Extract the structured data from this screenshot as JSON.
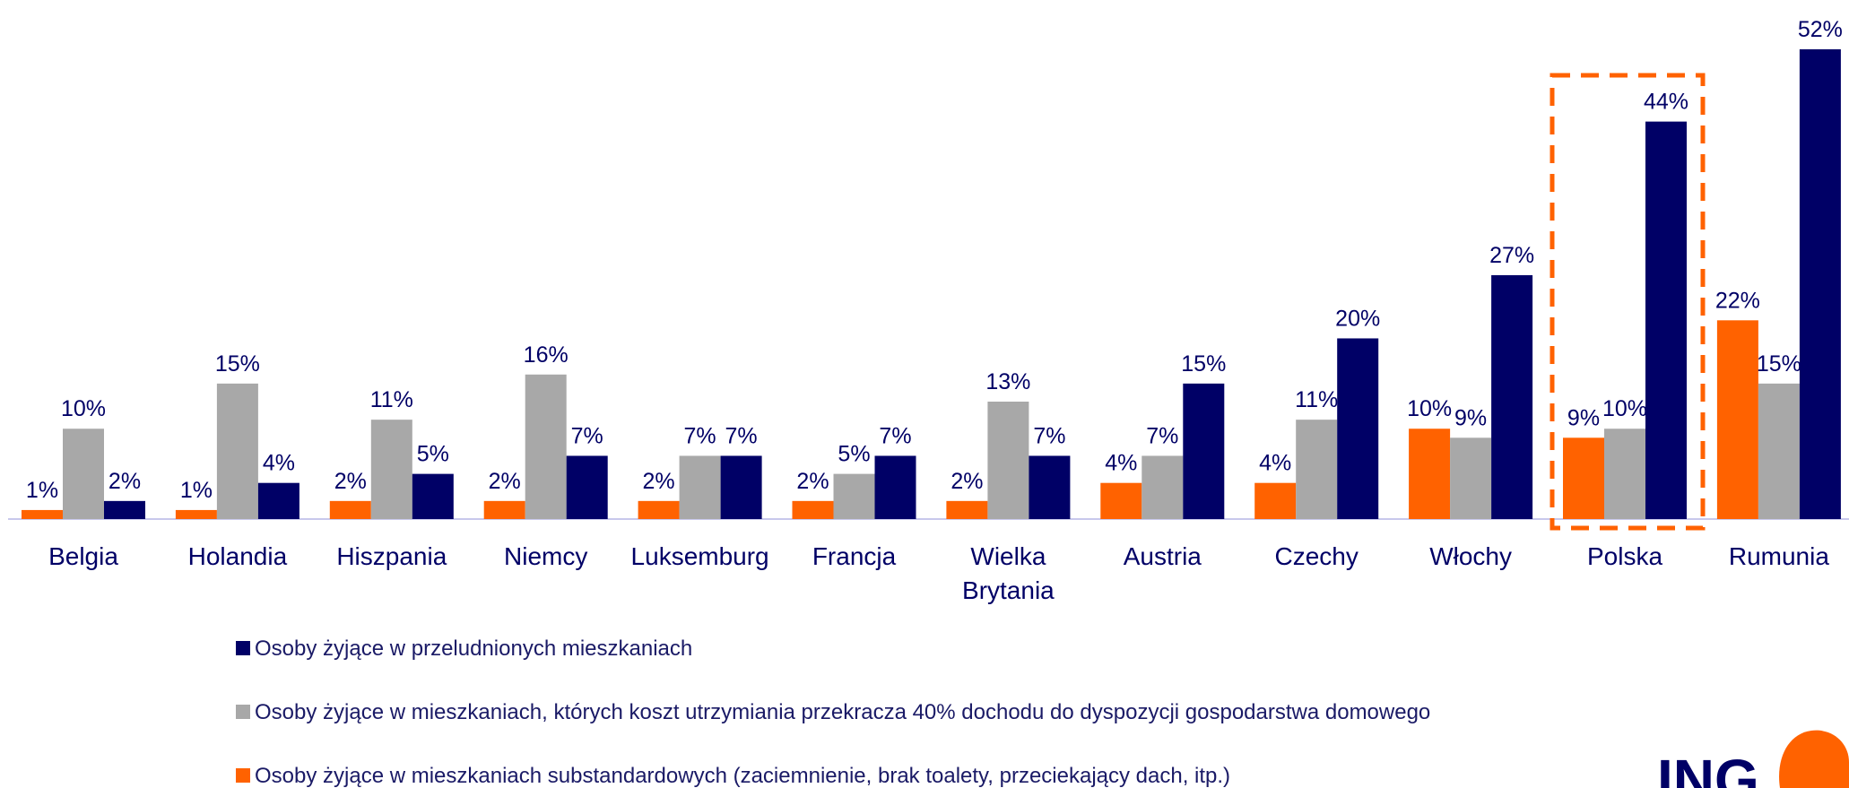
{
  "chart_data": {
    "type": "bar",
    "categories": [
      "Belgia",
      "Holandia",
      "Hiszpania",
      "Niemcy",
      "Luksemburg",
      "Francja",
      "Wielka Brytania",
      "Austria",
      "Czechy",
      "Włochy",
      "Polska",
      "Rumunia"
    ],
    "series": [
      {
        "name": "Osoby żyjące w mieszkaniach substandardowych (zaciemnienie, brak toalety, przeciekający dach, itp.)",
        "color": "#ff6200",
        "values": [
          1,
          1,
          2,
          2,
          2,
          2,
          2,
          4,
          4,
          10,
          9,
          22
        ],
        "value_labels": [
          "1%",
          "1%",
          "2%",
          "2%",
          "2%",
          "2%",
          "2%",
          "4%",
          "4%",
          "10%",
          "9%",
          "22%"
        ]
      },
      {
        "name": "Osoby żyjące w mieszkaniach, których koszt utrzymiania przekracza 40% dochodu do dyspozycji gospodarstwa domowego",
        "color": "#a8a8a8",
        "values": [
          10,
          15,
          11,
          16,
          7,
          5,
          13,
          7,
          11,
          9,
          10,
          15
        ],
        "value_labels": [
          "10%",
          "15%",
          "11%",
          "16%",
          "7%",
          "5%",
          "13%",
          "7%",
          "11%",
          "9%",
          "10%",
          "15%"
        ]
      },
      {
        "name": "Osoby żyjące w przeludnionych mieszkaniach",
        "color": "#000066",
        "values": [
          2,
          4,
          5,
          7,
          7,
          7,
          7,
          15,
          20,
          27,
          44,
          52
        ],
        "value_labels": [
          "2%",
          "4%",
          "5%",
          "7%",
          "7%",
          "7%",
          "7%",
          "15%",
          "20%",
          "27%",
          "44%",
          "52%"
        ]
      }
    ],
    "logo": "ING"
  }
}
